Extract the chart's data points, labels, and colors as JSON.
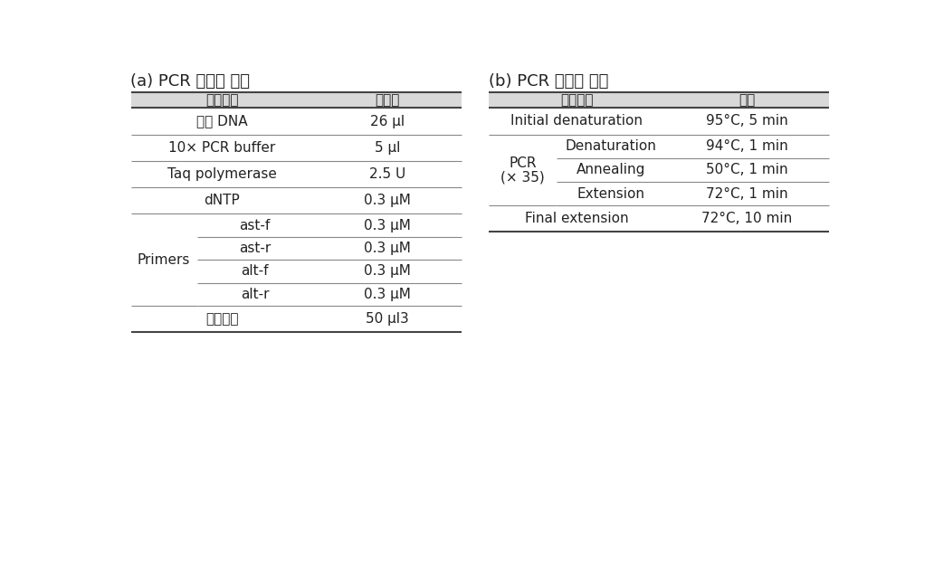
{
  "title_a": "(a) PCR 반응액 조성",
  "title_b": "(b) PCR 반응액 조건",
  "header_a_col1": "반응물질",
  "header_a_col2": "쳊가량",
  "header_b_col1": "반응단계",
  "header_b_col2": "조건",
  "header_bg": "#d9d9d9",
  "bg_color": "#ffffff",
  "text_color": "#222222",
  "font_size": 11,
  "title_font_size": 13,
  "row_a": [
    [
      "주형 DNA",
      "26 μl"
    ],
    [
      "10× PCR buffer",
      "5 μl"
    ],
    [
      "Taq polymerase",
      "2.5 U"
    ],
    [
      "dNTP",
      "0.3 μM"
    ]
  ],
  "primers_label": "Primers",
  "primer_rows": [
    [
      "ast-f",
      "0.3 μM"
    ],
    [
      "ast-r",
      "0.3 μM"
    ],
    [
      "alt-f",
      "0.3 μM"
    ],
    [
      "alt-r",
      "0.3 μM"
    ]
  ],
  "final_a": [
    "최종부피",
    "50 μl3"
  ],
  "row_b_init": [
    "Initial denaturation",
    "95°C, 5 min"
  ],
  "pcr_label_line1": "PCR",
  "pcr_label_line2": "(× 35)",
  "pcr_sub_rows": [
    [
      "Denaturation",
      "94°C, 1 min"
    ],
    [
      "Annealing",
      "50°C, 1 min"
    ],
    [
      "Extension",
      "72°C, 1 min"
    ]
  ],
  "row_b_final": [
    "Final extension",
    "72°C, 10 min"
  ]
}
